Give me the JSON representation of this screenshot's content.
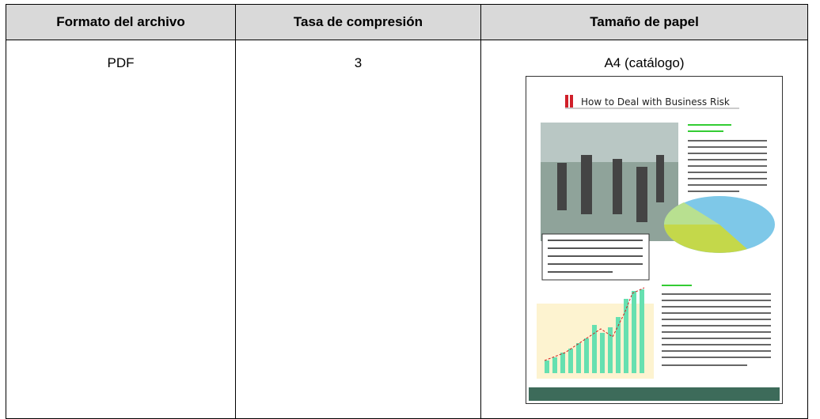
{
  "table": {
    "header": [
      "Formato del archivo",
      "Tasa de compresión",
      "Tamaño de papel"
    ],
    "rows": [
      [
        "PDF",
        "3",
        "A4 (catálogo)"
      ]
    ]
  },
  "thumbnail": {
    "title": "How to Deal with Business Risk"
  }
}
